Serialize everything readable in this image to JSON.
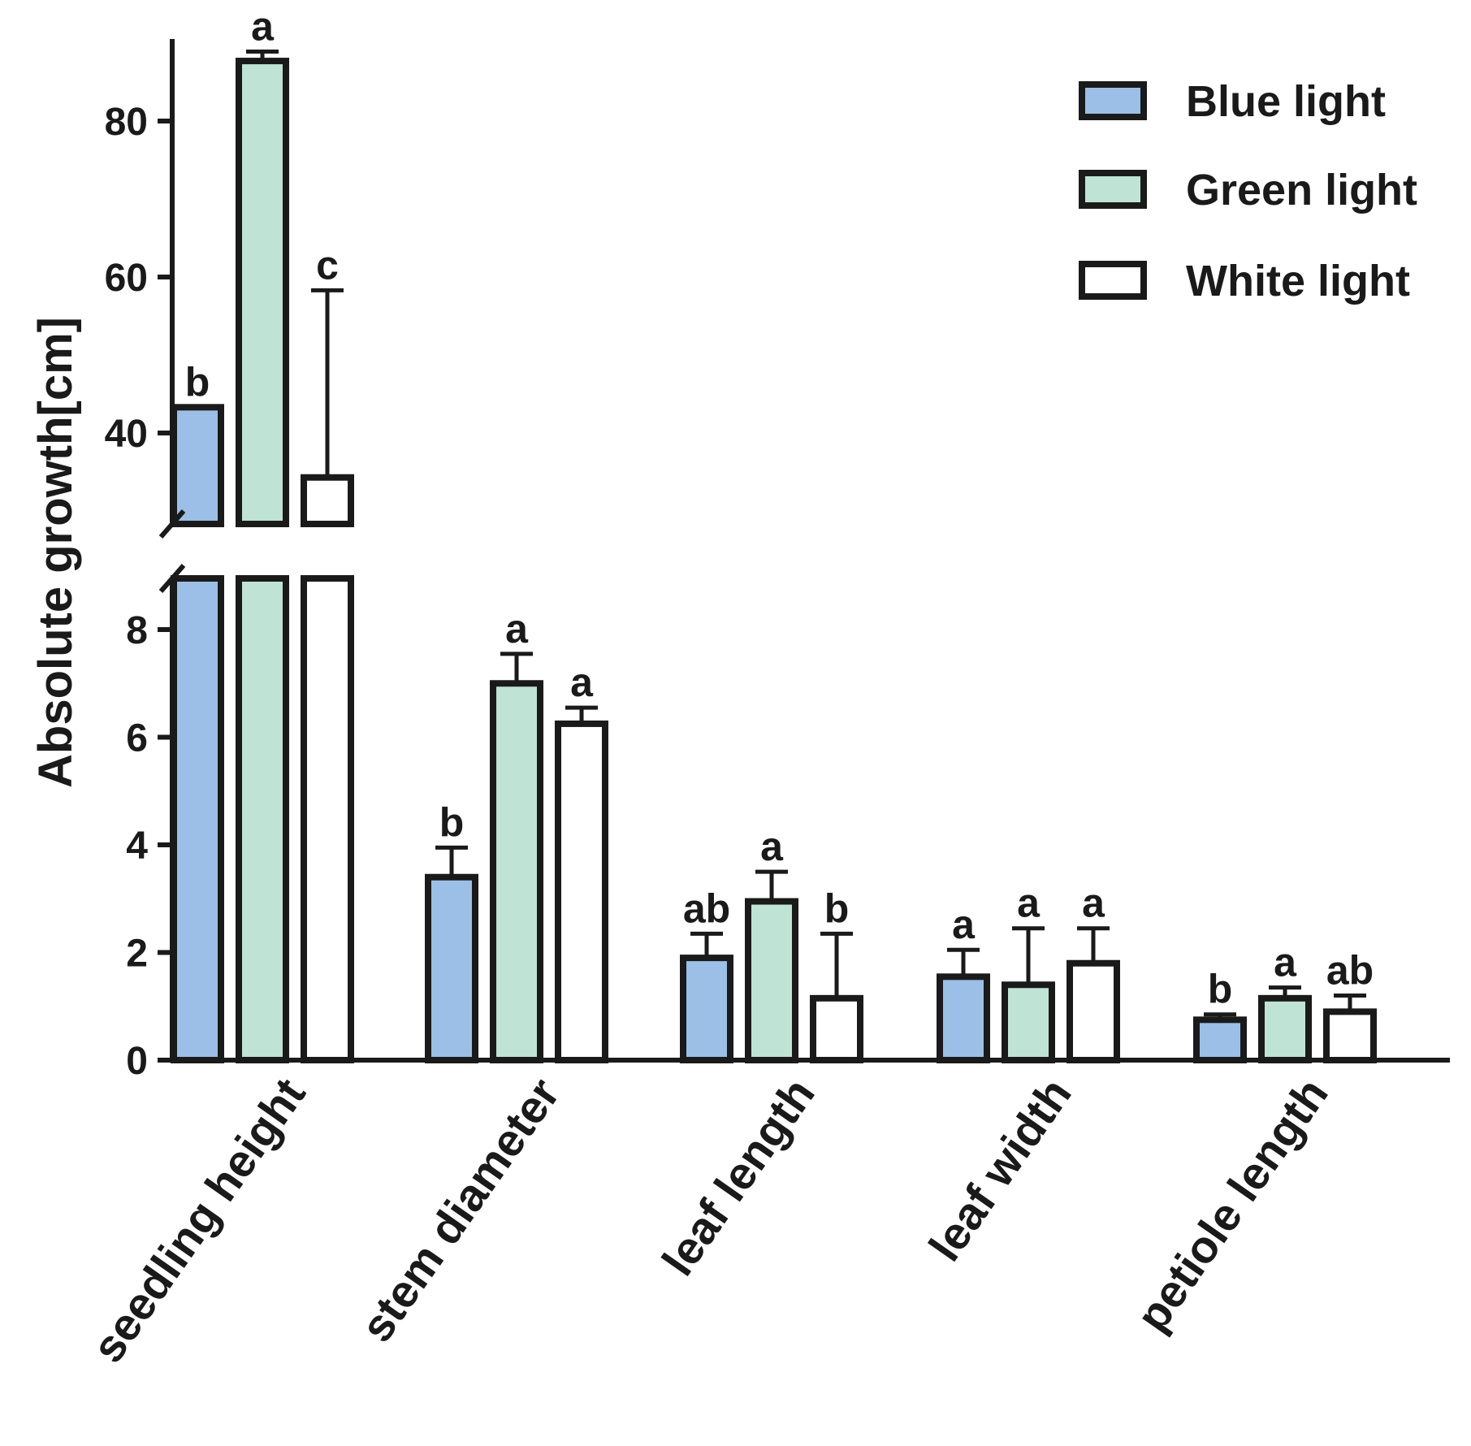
{
  "chart_data": {
    "type": "bar",
    "title": "",
    "ylabel": "Absolute growth[cm]",
    "xlabel": "",
    "y_axis_break": {
      "lower_range": [
        0,
        9
      ],
      "upper_range": [
        30,
        90
      ],
      "lower_ticks": [
        0,
        2,
        4,
        6,
        8
      ],
      "upper_ticks": [
        40,
        60,
        80
      ]
    },
    "categories": [
      "seedling height",
      "stem diameter",
      "leaf length",
      "leaf width",
      "petiole length"
    ],
    "series": [
      {
        "name": "Blue light",
        "color": "#9bbfe6",
        "values": [
          43.3,
          3.4,
          1.9,
          1.55,
          0.75
        ],
        "errors": [
          0,
          0.55,
          0.45,
          0.5,
          0.1
        ],
        "letters": [
          "b",
          "b",
          "ab",
          "a",
          "b"
        ]
      },
      {
        "name": "Green light",
        "color": "#bfe3d4",
        "values": [
          87.7,
          7.0,
          2.95,
          1.4,
          1.15
        ],
        "errors": [
          1.2,
          0.55,
          0.55,
          1.05,
          0.2
        ],
        "letters": [
          "a",
          "a",
          "a",
          "a",
          "a"
        ]
      },
      {
        "name": "White light",
        "color": "#ffffff",
        "values": [
          34.3,
          6.25,
          1.15,
          1.8,
          0.9
        ],
        "errors": [
          24.0,
          0.3,
          1.2,
          0.65,
          0.3
        ],
        "letters": [
          "c",
          "a",
          "b",
          "a",
          "ab"
        ]
      }
    ],
    "legend": {
      "position": "top-right",
      "entries": [
        "Blue light",
        "Green light",
        "White light"
      ]
    },
    "grid": false
  }
}
